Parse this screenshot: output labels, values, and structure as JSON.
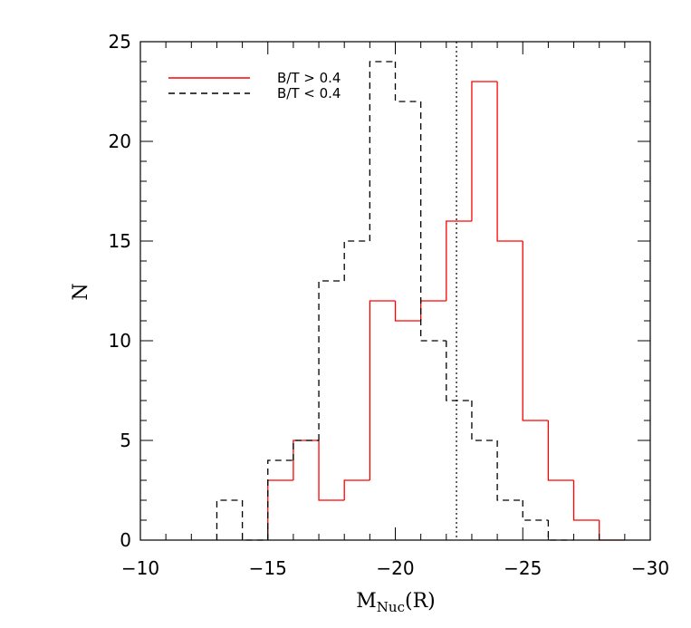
{
  "chart_data": {
    "type": "histogram",
    "xlabel": {
      "main": "M",
      "sub": "Nuc",
      "suffix": "(R)"
    },
    "ylabel": "N",
    "xlim": [
      -10,
      -30
    ],
    "ylim": [
      0,
      25
    ],
    "x_ticks": [
      -10,
      -15,
      -20,
      -25,
      -30
    ],
    "y_ticks": [
      0,
      5,
      10,
      15,
      20,
      25
    ],
    "bin_edges": [
      -10,
      -11,
      -12,
      -13,
      -14,
      -15,
      -16,
      -17,
      -18,
      -19,
      -20,
      -21,
      -22,
      -23,
      -24,
      -25,
      -26,
      -27,
      -28,
      -29,
      -30
    ],
    "series": [
      {
        "name": "B/T > 0.4",
        "style": "solid",
        "color": "#ff0000",
        "values": [
          0,
          0,
          0,
          0,
          0,
          3,
          5,
          2,
          3,
          12,
          11,
          12,
          16,
          23,
          15,
          6,
          3,
          1,
          0,
          0
        ]
      },
      {
        "name": "B/T < 0.4",
        "style": "dashed",
        "color": "#000000",
        "values": [
          0,
          0,
          0,
          2,
          0,
          4,
          5,
          13,
          15,
          24,
          22,
          10,
          7,
          5,
          2,
          1,
          0,
          0,
          0,
          0
        ]
      }
    ],
    "vline": {
      "x": -22.4,
      "style": "dotted"
    },
    "legend_position": "top-left",
    "grid": false
  }
}
